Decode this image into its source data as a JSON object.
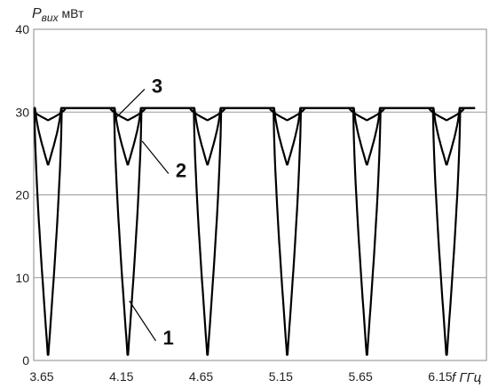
{
  "chart_data": {
    "type": "line",
    "ylabel": "P",
    "ylabel_sub": "вих",
    "ylabel_unit": " мВт",
    "xlabel": "f ГГц",
    "xlim": [
      3.6,
      6.44
    ],
    "ylim": [
      0,
      40
    ],
    "grid": "horizontal",
    "x_ticks": [
      3.65,
      4.15,
      4.65,
      5.15,
      5.65,
      6.15
    ],
    "x_tick_labels": [
      "3.65",
      "4.15",
      "4.65",
      "5.15",
      "5.65",
      "6.15"
    ],
    "y_ticks": [
      0,
      10,
      20,
      30,
      40
    ],
    "y_tick_labels": [
      "0",
      "10",
      "20",
      "30",
      "40"
    ],
    "period": 0.5,
    "peak_value": 30.5,
    "minima_x": [
      3.69,
      4.19,
      4.69,
      5.19,
      5.69,
      6.19
    ],
    "series": [
      {
        "name": "1",
        "min_value": 0,
        "width": 0.17
      },
      {
        "name": "2",
        "min_value": 23.5,
        "width": 0.16
      },
      {
        "name": "3",
        "min_value": 29,
        "width": 0.22
      }
    ],
    "callouts": [
      {
        "text": "3",
        "target_x": 4.11,
        "target_y": 29.2,
        "label_x": 4.34,
        "label_y": 33.2
      },
      {
        "text": "2",
        "target_x": 4.28,
        "target_y": 26.5,
        "label_x": 4.49,
        "label_y": 23.0
      },
      {
        "text": "1",
        "target_x": 4.2,
        "target_y": 7.2,
        "label_x": 4.41,
        "label_y": 2.8
      }
    ]
  }
}
